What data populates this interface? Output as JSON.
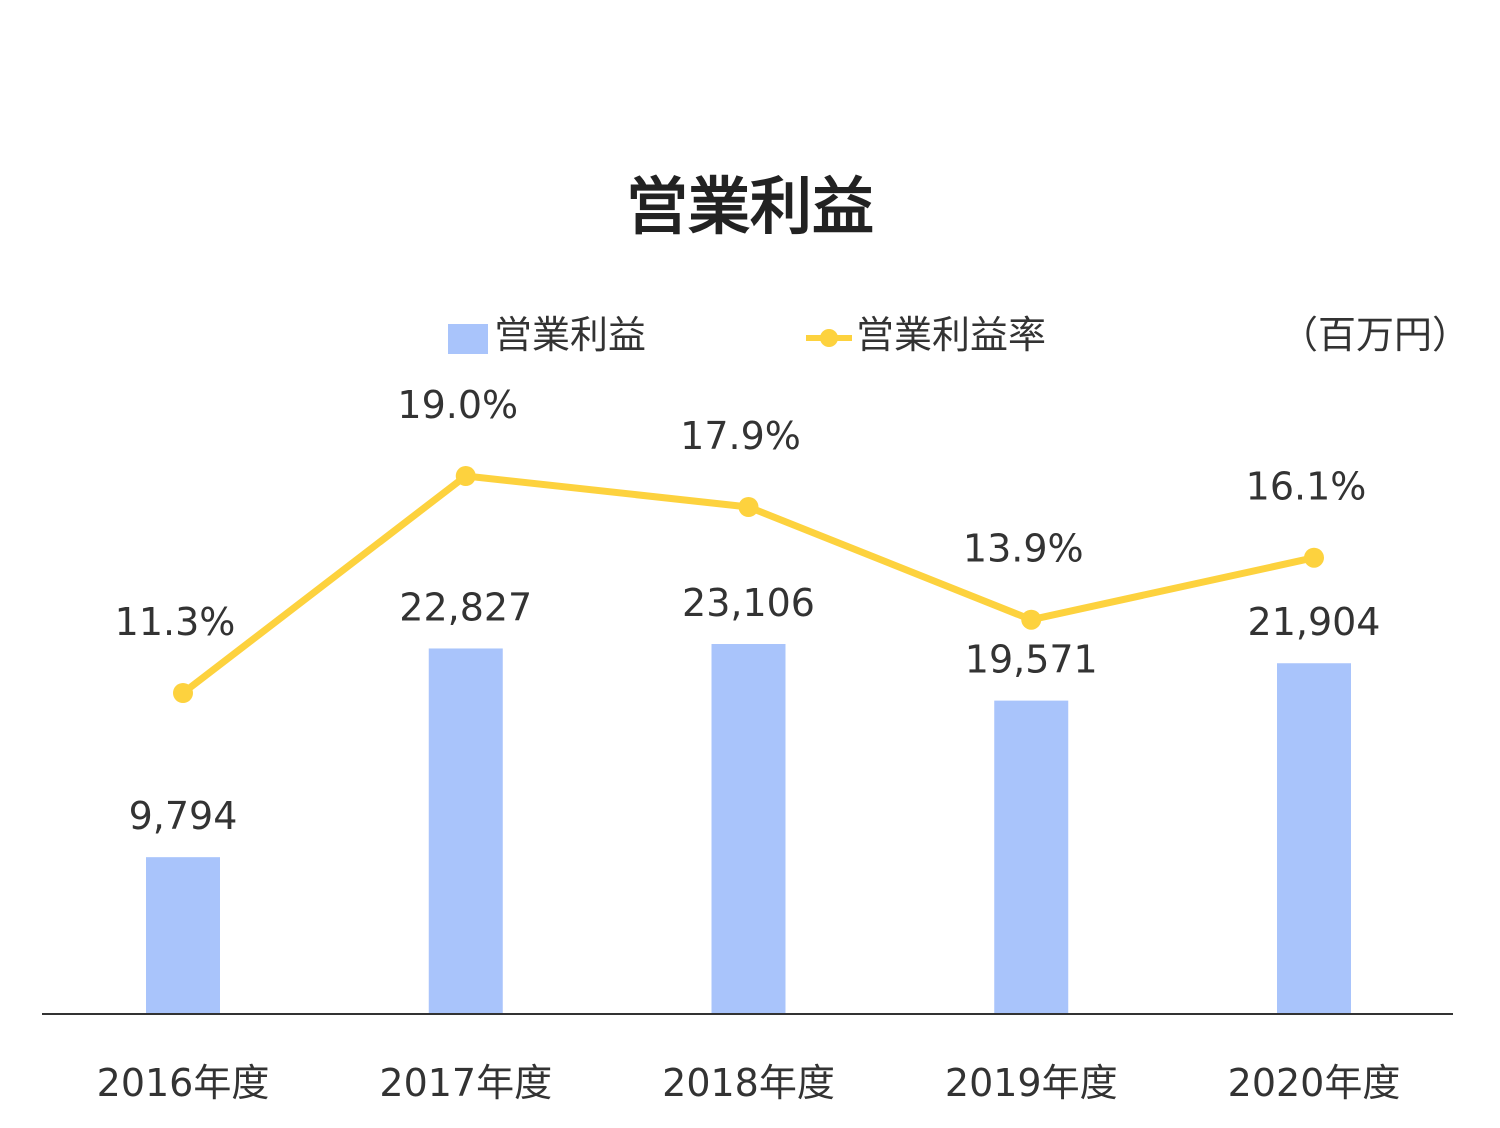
{
  "chart_data": {
    "type": "bar",
    "title": "営業利益",
    "unit": "（百万円）",
    "categories": [
      "2016年度",
      "2017年度",
      "2018年度",
      "2019年度",
      "2020年度"
    ],
    "series": [
      {
        "name": "営業利益",
        "type": "bar",
        "values": [
          9794,
          22827,
          23106,
          19571,
          21904
        ],
        "labels": [
          "9,794",
          "22,827",
          "23,106",
          "19,571",
          "21,904"
        ],
        "color": "#a9c4fb"
      },
      {
        "name": "営業利益率",
        "type": "line",
        "values": [
          11.3,
          19.0,
          17.9,
          13.9,
          16.1
        ],
        "labels": [
          "11.3%",
          "19.0%",
          "17.9%",
          "13.9%",
          "16.1%"
        ],
        "color": "#fdd23e"
      }
    ],
    "legend": "top-center",
    "grid": false,
    "axis_color": "#333333"
  }
}
